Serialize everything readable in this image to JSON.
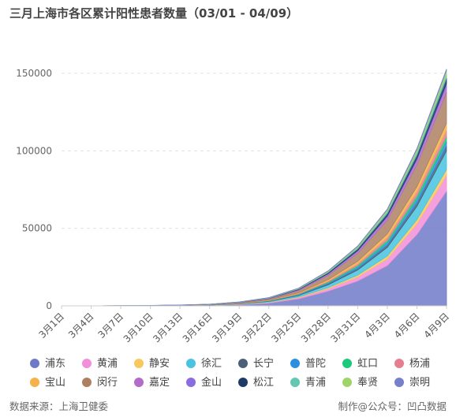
{
  "title": "三月上海市各区累计阳性患者数量（03/01 - 04/09）",
  "footer": {
    "source": "数据来源：上海卫健委",
    "credit": "制作@公众号：凹凸数据"
  },
  "chart_data": {
    "type": "area",
    "stacked": true,
    "title": "三月上海市各区累计阳性患者数量（03/01 - 04/09）",
    "xlabel": "",
    "ylabel": "",
    "ylim": [
      0,
      180000
    ],
    "yticks": [
      0,
      50000,
      100000,
      150000
    ],
    "grid": "horizontal-dashed",
    "legend_position": "bottom",
    "x_labels_shown": [
      "3月1日",
      "3月4日",
      "3月7日",
      "3月10日",
      "3月13日",
      "3月16日",
      "3月19日",
      "3月22日",
      "3月25日",
      "3月28日",
      "3月31日",
      "4月3日",
      "4月6日",
      "4月9日"
    ],
    "x": [
      "3月1日",
      "3月4日",
      "3月7日",
      "3月10日",
      "3月13日",
      "3月16日",
      "3月19日",
      "3月22日",
      "3月25日",
      "3月28日",
      "3月31日",
      "4月3日",
      "4月6日",
      "4月9日"
    ],
    "series": [
      {
        "name": "浦东",
        "color": "#6e7ac8",
        "values": [
          0,
          10,
          30,
          80,
          150,
          300,
          800,
          1800,
          4500,
          9500,
          16000,
          26000,
          46000,
          74000
        ]
      },
      {
        "name": "黄浦",
        "color": "#f28fd8",
        "values": [
          0,
          2,
          8,
          20,
          40,
          80,
          180,
          380,
          800,
          1500,
          2600,
          4300,
          6900,
          10200
        ]
      },
      {
        "name": "静安",
        "color": "#f7c85a",
        "values": [
          0,
          1,
          5,
          12,
          25,
          50,
          110,
          220,
          420,
          750,
          1200,
          1800,
          2700,
          3800
        ]
      },
      {
        "name": "徐汇",
        "color": "#48c3e0",
        "values": [
          0,
          2,
          10,
          25,
          50,
          100,
          220,
          450,
          900,
          1800,
          3300,
          5600,
          8600,
          12000
        ]
      },
      {
        "name": "长宁",
        "color": "#4a5f78",
        "values": [
          0,
          1,
          4,
          10,
          20,
          40,
          90,
          180,
          330,
          600,
          1000,
          1500,
          2200,
          3000
        ]
      },
      {
        "name": "普陀",
        "color": "#2a8fe0",
        "values": [
          0,
          1,
          4,
          10,
          20,
          40,
          90,
          180,
          350,
          650,
          1100,
          1700,
          2400,
          3300
        ]
      },
      {
        "name": "虹口",
        "color": "#1ac97a",
        "values": [
          0,
          1,
          3,
          8,
          15,
          30,
          70,
          140,
          280,
          520,
          900,
          1400,
          2100,
          3100
        ]
      },
      {
        "name": "杨浦",
        "color": "#e57f8f",
        "values": [
          0,
          1,
          4,
          10,
          20,
          40,
          90,
          180,
          350,
          650,
          1100,
          1800,
          2700,
          3900
        ]
      },
      {
        "name": "宝山",
        "color": "#f5b14a",
        "values": [
          0,
          1,
          5,
          12,
          25,
          50,
          120,
          250,
          480,
          900,
          1500,
          2300,
          3300,
          4500
        ]
      },
      {
        "name": "闵行",
        "color": "#ad8063",
        "values": [
          0,
          3,
          15,
          40,
          80,
          160,
          350,
          700,
          1400,
          2800,
          5200,
          8800,
          14000,
          20000
        ]
      },
      {
        "name": "嘉定",
        "color": "#b06cc8",
        "values": [
          0,
          1,
          5,
          12,
          25,
          50,
          110,
          220,
          420,
          800,
          1300,
          2000,
          3000,
          4300
        ]
      },
      {
        "name": "金山",
        "color": "#8a6ee0",
        "values": [
          0,
          1,
          3,
          6,
          12,
          25,
          55,
          110,
          200,
          350,
          550,
          800,
          1100,
          1500
        ]
      },
      {
        "name": "松江",
        "color": "#1e3a66",
        "values": [
          0,
          1,
          4,
          10,
          20,
          40,
          90,
          180,
          350,
          650,
          1050,
          1650,
          2450,
          3400
        ]
      },
      {
        "name": "青浦",
        "color": "#65c7b2",
        "values": [
          0,
          1,
          3,
          8,
          15,
          30,
          70,
          140,
          260,
          460,
          750,
          1150,
          1650,
          2300
        ]
      },
      {
        "name": "奉贤",
        "color": "#9fd46a",
        "values": [
          0,
          1,
          3,
          8,
          15,
          30,
          70,
          140,
          270,
          480,
          800,
          1250,
          1850,
          2600
        ]
      },
      {
        "name": "崇明",
        "color": "#7880cc",
        "values": [
          0,
          0,
          1,
          3,
          6,
          12,
          25,
          50,
          90,
          150,
          250,
          380,
          560,
          800
        ]
      }
    ]
  }
}
